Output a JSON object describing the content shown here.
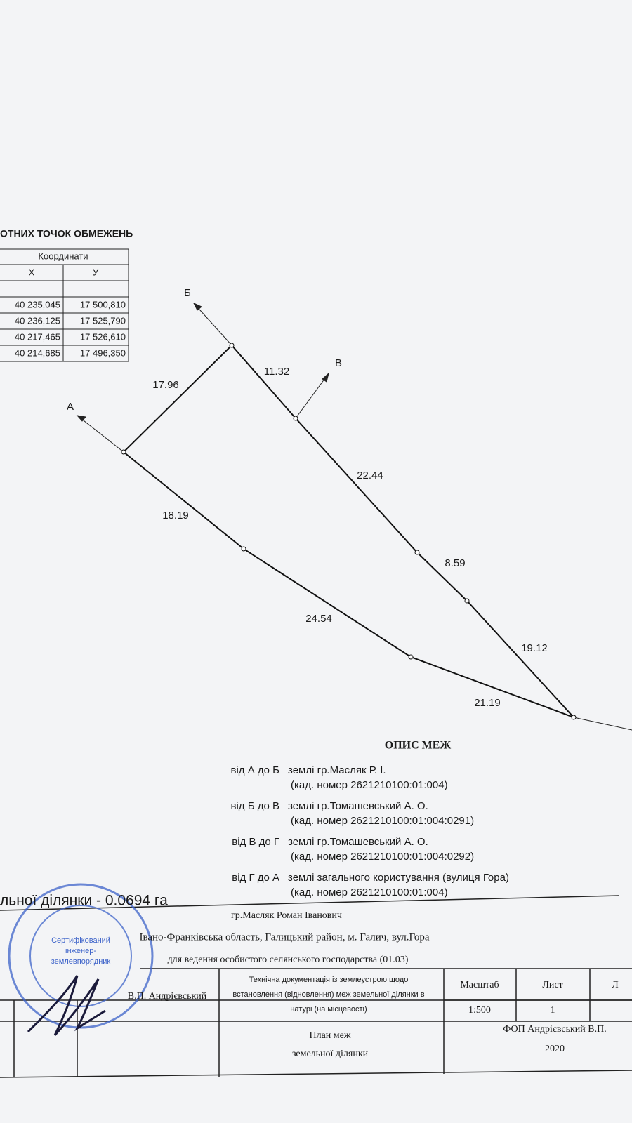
{
  "header": {
    "title": "ОТНИХ ТОЧОК ОБМЕЖЕНЬ"
  },
  "table": {
    "group": "Координати",
    "columns": [
      "X",
      "У"
    ],
    "rows": [
      [
        "40 235,045",
        "17 500,810"
      ],
      [
        "40 236,125",
        "17 525,790"
      ],
      [
        "40 217,465",
        "17 526,610"
      ],
      [
        "40 214,685",
        "17 496,350"
      ]
    ]
  },
  "plan": {
    "points": [
      "А",
      "Б",
      "В"
    ],
    "lengths": [
      "17.96",
      "11.32",
      "22.44",
      "8.59",
      "19.12",
      "21.19",
      "24.54",
      "18.19"
    ]
  },
  "description": {
    "title": "ОПИС МЕЖ",
    "entries": [
      {
        "label": "від А до Б",
        "owner": "землі гр.Масляк Р. І.",
        "cadastre": "(кад. номер 2621210100:01:004)"
      },
      {
        "label": "від Б до В",
        "owner": "землі гр.Томашевський А. О.",
        "cadastre": "(кад. номер 2621210100:01:004:0291)"
      },
      {
        "label": "від В до Г",
        "owner": "землі гр.Томашевський А. О.",
        "cadastre": "(кад. номер 2621210100:01:004:0292)"
      },
      {
        "label": "від Г до А",
        "owner": "землі загального користування (вулиця Гора)",
        "cadastre": "(кад. номер 2621210100:01:004)"
      }
    ]
  },
  "area": "льної ділянки - 0.0694 га",
  "stamp": {
    "owner": "гр.Масляк Роман Іванович",
    "address": "Івано-Франківська область, Галицький район, м. Галич, вул.Гора",
    "purpose": "для ведення особистого селянського господарства (01.03)",
    "engineer": "В.П. Андрієвський",
    "document": [
      "Технічна документація із землеустрою щодо",
      "встановлення (відновлення) меж земельної ділянки в",
      "натурі (на місцевості)"
    ],
    "scale_label": "Масштаб",
    "sheet_label": "Лист",
    "sheets_label": "Л",
    "scale": "1:500",
    "sheet": "1",
    "plan_title": [
      "План меж",
      "земельної ділянки"
    ],
    "company": "ФОП Андрієвський В.П.",
    "year": "2020",
    "seal": [
      "Сертифікований",
      "інженер-",
      "землевпорядник"
    ]
  }
}
